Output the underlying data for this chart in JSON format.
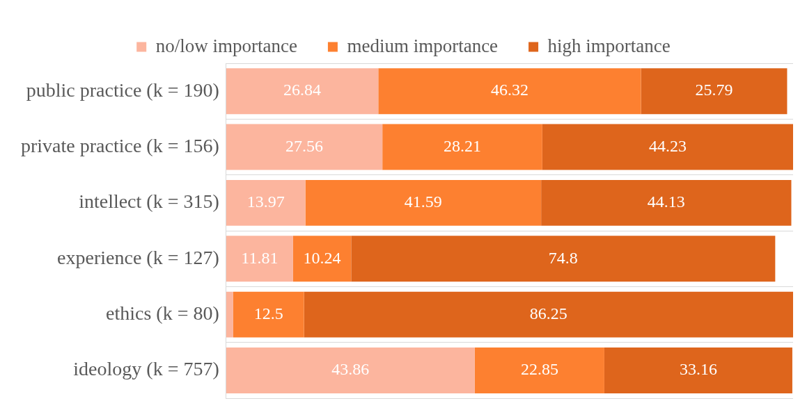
{
  "chart_data": {
    "type": "bar",
    "orientation": "horizontal",
    "stacked": true,
    "categories": [
      "public practice (k = 190)",
      "private practice (k = 156)",
      "intellect (k = 315)",
      "experience (k = 127)",
      "ethics (k = 80)",
      "ideology (k = 757)"
    ],
    "series": [
      {
        "name": "no/low importance",
        "color": "#fcb59e",
        "values": [
          26.84,
          27.56,
          13.97,
          11.81,
          1.25,
          43.86
        ],
        "value_labels": [
          "26.84",
          "27.56",
          "13.97",
          "11.81",
          null,
          "43.86"
        ]
      },
      {
        "name": "medium importance",
        "color": "#fd8030",
        "values": [
          46.32,
          28.21,
          41.59,
          10.24,
          12.5,
          22.85
        ],
        "value_labels": [
          "46.32",
          "28.21",
          "41.59",
          "10.24",
          "12.5",
          "22.85"
        ]
      },
      {
        "name": "high importance",
        "color": "#de651c",
        "values": [
          25.79,
          44.23,
          44.13,
          74.8,
          86.25,
          33.16
        ],
        "value_labels": [
          "25.79",
          "44.23",
          "44.13",
          "74.8",
          "86.25",
          "33.16"
        ]
      }
    ],
    "xlim": [
      0,
      100
    ],
    "tick_labels": "y",
    "grid": "y",
    "legend": "top"
  }
}
